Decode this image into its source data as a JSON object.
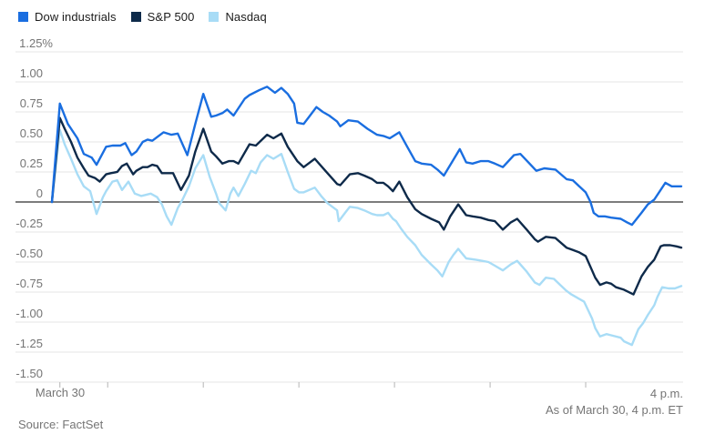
{
  "legend": {
    "items": [
      {
        "label": "Dow industrials",
        "color": "#1a6ee0"
      },
      {
        "label": "S&P 500",
        "color": "#0e2a4a"
      },
      {
        "label": "Nasdaq",
        "color": "#a8dcf6"
      }
    ]
  },
  "footer": {
    "source": "Source: FactSet",
    "as_of": "As of March 30, 4 p.m. ET"
  },
  "chart_data": {
    "type": "line",
    "title": "",
    "unit": "percent change",
    "x_axis": {
      "start_label": "March 30",
      "end_label": "4 p.m.",
      "domain_minutes": [
        -5,
        390
      ],
      "tick_minutes": [
        0,
        30,
        90,
        150,
        210,
        270,
        330
      ],
      "grid": false
    },
    "y_axis": {
      "ylim": [
        -1.5,
        1.25
      ],
      "grid": true,
      "ticks": [
        {
          "label": "1.25%",
          "value": 1.25
        },
        {
          "label": "1.00",
          "value": 1.0
        },
        {
          "label": "0.75",
          "value": 0.75
        },
        {
          "label": "0.50",
          "value": 0.5
        },
        {
          "label": "0.25",
          "value": 0.25
        },
        {
          "label": "0",
          "value": 0
        },
        {
          "label": "-0.25",
          "value": -0.25
        },
        {
          "label": "-0.50",
          "value": -0.5
        },
        {
          "label": "-0.75",
          "value": -0.75
        },
        {
          "label": "-1.00",
          "value": -1.0
        },
        {
          "label": "-1.25",
          "value": -1.25
        },
        {
          "label": "-1.50",
          "value": -1.5
        }
      ]
    },
    "series": [
      {
        "name": "Dow industrials",
        "color": "#1a6ee0",
        "points": [
          [
            -5,
            0
          ],
          [
            0,
            0.82
          ],
          [
            5,
            0.65
          ],
          [
            11,
            0.53
          ],
          [
            15,
            0.4
          ],
          [
            20,
            0.37
          ],
          [
            23,
            0.31
          ],
          [
            29,
            0.46
          ],
          [
            33,
            0.47
          ],
          [
            38,
            0.47
          ],
          [
            41,
            0.49
          ],
          [
            45,
            0.39
          ],
          [
            48,
            0.42
          ],
          [
            52,
            0.5
          ],
          [
            55,
            0.52
          ],
          [
            58,
            0.51
          ],
          [
            61,
            0.54
          ],
          [
            65,
            0.58
          ],
          [
            70,
            0.56
          ],
          [
            74,
            0.57
          ],
          [
            80,
            0.39
          ],
          [
            85,
            0.65
          ],
          [
            90,
            0.9
          ],
          [
            95,
            0.71
          ],
          [
            98,
            0.72
          ],
          [
            102,
            0.74
          ],
          [
            105,
            0.77
          ],
          [
            109,
            0.72
          ],
          [
            116,
            0.86
          ],
          [
            119,
            0.89
          ],
          [
            125,
            0.93
          ],
          [
            130,
            0.96
          ],
          [
            135,
            0.91
          ],
          [
            139,
            0.95
          ],
          [
            143,
            0.9
          ],
          [
            147,
            0.82
          ],
          [
            149,
            0.66
          ],
          [
            153,
            0.65
          ],
          [
            157,
            0.72
          ],
          [
            161,
            0.79
          ],
          [
            165,
            0.75
          ],
          [
            169,
            0.72
          ],
          [
            174,
            0.67
          ],
          [
            176,
            0.63
          ],
          [
            181,
            0.68
          ],
          [
            187,
            0.67
          ],
          [
            193,
            0.61
          ],
          [
            199,
            0.56
          ],
          [
            203,
            0.55
          ],
          [
            207,
            0.53
          ],
          [
            213,
            0.58
          ],
          [
            218,
            0.46
          ],
          [
            223,
            0.34
          ],
          [
            227,
            0.32
          ],
          [
            233,
            0.31
          ],
          [
            237,
            0.27
          ],
          [
            241,
            0.22
          ],
          [
            246,
            0.33
          ],
          [
            251,
            0.44
          ],
          [
            255,
            0.33
          ],
          [
            259,
            0.32
          ],
          [
            264,
            0.34
          ],
          [
            269,
            0.34
          ],
          [
            273,
            0.32
          ],
          [
            278,
            0.29
          ],
          [
            285,
            0.39
          ],
          [
            289,
            0.4
          ],
          [
            294,
            0.33
          ],
          [
            299,
            0.26
          ],
          [
            304,
            0.28
          ],
          [
            311,
            0.27
          ],
          [
            318,
            0.19
          ],
          [
            322,
            0.18
          ],
          [
            330,
            0.08
          ],
          [
            333,
            0.0
          ],
          [
            335,
            -0.09
          ],
          [
            338,
            -0.12
          ],
          [
            342,
            -0.12
          ],
          [
            346,
            -0.13
          ],
          [
            352,
            -0.14
          ],
          [
            356,
            -0.17
          ],
          [
            359,
            -0.19
          ],
          [
            365,
            -0.09
          ],
          [
            369,
            -0.02
          ],
          [
            373,
            0.02
          ],
          [
            377,
            0.1
          ],
          [
            380,
            0.16
          ],
          [
            384,
            0.13
          ],
          [
            390,
            0.13
          ]
        ]
      },
      {
        "name": "S&P 500",
        "color": "#0e2a4a",
        "points": [
          [
            -5,
            0
          ],
          [
            0,
            0.7
          ],
          [
            3,
            0.61
          ],
          [
            7,
            0.5
          ],
          [
            11,
            0.37
          ],
          [
            15,
            0.28
          ],
          [
            18,
            0.22
          ],
          [
            22,
            0.2
          ],
          [
            25,
            0.17
          ],
          [
            29,
            0.23
          ],
          [
            32,
            0.24
          ],
          [
            36,
            0.25
          ],
          [
            39,
            0.3
          ],
          [
            42,
            0.32
          ],
          [
            46,
            0.23
          ],
          [
            48,
            0.26
          ],
          [
            52,
            0.29
          ],
          [
            55,
            0.29
          ],
          [
            58,
            0.31
          ],
          [
            61,
            0.3
          ],
          [
            64,
            0.24
          ],
          [
            68,
            0.24
          ],
          [
            71,
            0.24
          ],
          [
            76,
            0.1
          ],
          [
            81,
            0.22
          ],
          [
            85,
            0.42
          ],
          [
            90,
            0.61
          ],
          [
            95,
            0.42
          ],
          [
            98,
            0.38
          ],
          [
            102,
            0.32
          ],
          [
            106,
            0.34
          ],
          [
            109,
            0.34
          ],
          [
            112,
            0.32
          ],
          [
            119,
            0.48
          ],
          [
            123,
            0.47
          ],
          [
            130,
            0.56
          ],
          [
            134,
            0.53
          ],
          [
            139,
            0.57
          ],
          [
            143,
            0.46
          ],
          [
            149,
            0.34
          ],
          [
            153,
            0.29
          ],
          [
            157,
            0.33
          ],
          [
            160,
            0.36
          ],
          [
            166,
            0.27
          ],
          [
            170,
            0.21
          ],
          [
            174,
            0.15
          ],
          [
            176,
            0.14
          ],
          [
            182,
            0.23
          ],
          [
            187,
            0.24
          ],
          [
            191,
            0.22
          ],
          [
            196,
            0.19
          ],
          [
            199,
            0.16
          ],
          [
            203,
            0.16
          ],
          [
            206,
            0.13
          ],
          [
            209,
            0.09
          ],
          [
            213,
            0.17
          ],
          [
            218,
            0.04
          ],
          [
            223,
            -0.06
          ],
          [
            227,
            -0.1
          ],
          [
            233,
            -0.14
          ],
          [
            238,
            -0.17
          ],
          [
            241,
            -0.23
          ],
          [
            245,
            -0.12
          ],
          [
            250,
            -0.02
          ],
          [
            255,
            -0.11
          ],
          [
            259,
            -0.12
          ],
          [
            264,
            -0.13
          ],
          [
            269,
            -0.15
          ],
          [
            273,
            -0.16
          ],
          [
            278,
            -0.23
          ],
          [
            283,
            -0.17
          ],
          [
            287,
            -0.14
          ],
          [
            293,
            -0.23
          ],
          [
            298,
            -0.31
          ],
          [
            300,
            -0.33
          ],
          [
            305,
            -0.29
          ],
          [
            311,
            -0.3
          ],
          [
            318,
            -0.38
          ],
          [
            322,
            -0.4
          ],
          [
            326,
            -0.42
          ],
          [
            330,
            -0.45
          ],
          [
            334,
            -0.57
          ],
          [
            336,
            -0.63
          ],
          [
            339,
            -0.69
          ],
          [
            343,
            -0.67
          ],
          [
            346,
            -0.68
          ],
          [
            349,
            -0.71
          ],
          [
            354,
            -0.73
          ],
          [
            360,
            -0.77
          ],
          [
            365,
            -0.62
          ],
          [
            369,
            -0.54
          ],
          [
            371,
            -0.51
          ],
          [
            373,
            -0.48
          ],
          [
            377,
            -0.37
          ],
          [
            379,
            -0.36
          ],
          [
            383,
            -0.36
          ],
          [
            387,
            -0.37
          ],
          [
            390,
            -0.38
          ]
        ]
      },
      {
        "name": "Nasdaq",
        "color": "#a8dcf6",
        "points": [
          [
            -5,
            0
          ],
          [
            0,
            0.6
          ],
          [
            3,
            0.48
          ],
          [
            7,
            0.36
          ],
          [
            11,
            0.23
          ],
          [
            15,
            0.13
          ],
          [
            19,
            0.09
          ],
          [
            23,
            -0.1
          ],
          [
            27,
            0.04
          ],
          [
            29,
            0.09
          ],
          [
            33,
            0.17
          ],
          [
            36,
            0.18
          ],
          [
            39,
            0.1
          ],
          [
            43,
            0.17
          ],
          [
            47,
            0.07
          ],
          [
            51,
            0.05
          ],
          [
            57,
            0.07
          ],
          [
            61,
            0.04
          ],
          [
            64,
            -0.02
          ],
          [
            67,
            -0.12
          ],
          [
            70,
            -0.19
          ],
          [
            74,
            -0.05
          ],
          [
            77,
            0.02
          ],
          [
            81,
            0.13
          ],
          [
            85,
            0.28
          ],
          [
            90,
            0.39
          ],
          [
            94,
            0.21
          ],
          [
            98,
            0.07
          ],
          [
            100,
            -0.01
          ],
          [
            104,
            -0.07
          ],
          [
            107,
            0.07
          ],
          [
            109,
            0.12
          ],
          [
            112,
            0.05
          ],
          [
            116,
            0.15
          ],
          [
            120,
            0.26
          ],
          [
            123,
            0.24
          ],
          [
            126,
            0.33
          ],
          [
            130,
            0.39
          ],
          [
            134,
            0.36
          ],
          [
            139,
            0.4
          ],
          [
            143,
            0.25
          ],
          [
            147,
            0.11
          ],
          [
            150,
            0.08
          ],
          [
            153,
            0.08
          ],
          [
            160,
            0.12
          ],
          [
            164,
            0.05
          ],
          [
            168,
            -0.01
          ],
          [
            171,
            -0.04
          ],
          [
            174,
            -0.07
          ],
          [
            175,
            -0.16
          ],
          [
            179,
            -0.09
          ],
          [
            182,
            -0.04
          ],
          [
            187,
            -0.05
          ],
          [
            191,
            -0.07
          ],
          [
            196,
            -0.1
          ],
          [
            199,
            -0.11
          ],
          [
            203,
            -0.11
          ],
          [
            206,
            -0.09
          ],
          [
            209,
            -0.14
          ],
          [
            211,
            -0.16
          ],
          [
            214,
            -0.22
          ],
          [
            218,
            -0.29
          ],
          [
            223,
            -0.36
          ],
          [
            227,
            -0.44
          ],
          [
            233,
            -0.52
          ],
          [
            237,
            -0.57
          ],
          [
            240,
            -0.62
          ],
          [
            244,
            -0.5
          ],
          [
            247,
            -0.44
          ],
          [
            250,
            -0.39
          ],
          [
            255,
            -0.47
          ],
          [
            261,
            -0.48
          ],
          [
            265,
            -0.49
          ],
          [
            269,
            -0.5
          ],
          [
            273,
            -0.53
          ],
          [
            278,
            -0.57
          ],
          [
            283,
            -0.52
          ],
          [
            287,
            -0.49
          ],
          [
            293,
            -0.58
          ],
          [
            298,
            -0.67
          ],
          [
            301,
            -0.69
          ],
          [
            305,
            -0.63
          ],
          [
            310,
            -0.64
          ],
          [
            314,
            -0.69
          ],
          [
            318,
            -0.74
          ],
          [
            321,
            -0.77
          ],
          [
            325,
            -0.8
          ],
          [
            329,
            -0.83
          ],
          [
            334,
            -0.97
          ],
          [
            336,
            -1.05
          ],
          [
            339,
            -1.12
          ],
          [
            343,
            -1.1
          ],
          [
            346,
            -1.11
          ],
          [
            352,
            -1.13
          ],
          [
            354,
            -1.16
          ],
          [
            359,
            -1.19
          ],
          [
            363,
            -1.06
          ],
          [
            366,
            -1.01
          ],
          [
            369,
            -0.94
          ],
          [
            373,
            -0.86
          ],
          [
            375,
            -0.79
          ],
          [
            378,
            -0.71
          ],
          [
            382,
            -0.72
          ],
          [
            386,
            -0.72
          ],
          [
            390,
            -0.7
          ]
        ]
      }
    ]
  }
}
